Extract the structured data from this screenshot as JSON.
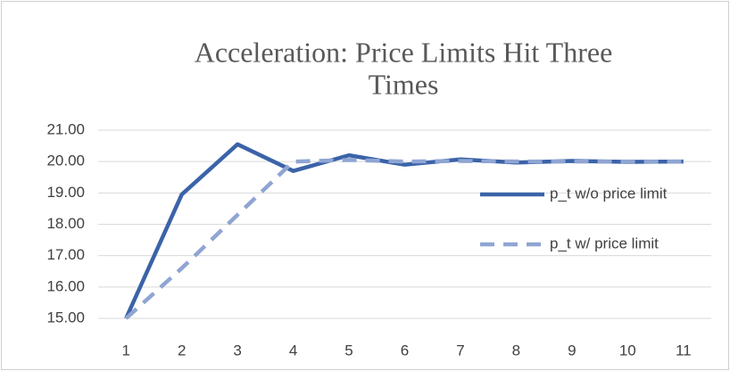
{
  "chart_data": {
    "type": "line",
    "title": "Acceleration: Price Limits Hit Three Times",
    "categories": [
      "1",
      "2",
      "3",
      "4",
      "5",
      "6",
      "7",
      "8",
      "9",
      "10",
      "11"
    ],
    "series": [
      {
        "name": "p_t w/o price limit",
        "color": "#3b63a8",
        "dash": false,
        "values": [
          15,
          18.95,
          20.55,
          19.7,
          20.2,
          19.9,
          20.07,
          19.97,
          20.02,
          19.99,
          20.0
        ]
      },
      {
        "name": "p_t w/ price limit",
        "color": "#8fa5d3",
        "dash": true,
        "values": [
          15,
          16.6,
          18.3,
          20.0,
          20.05,
          20.0,
          20.02,
          20.0,
          20.0,
          20.0,
          20.0
        ]
      }
    ],
    "ylim": [
      15,
      21
    ],
    "yticks": [
      {
        "value": 15,
        "label": "15.00"
      },
      {
        "value": 16,
        "label": "16.00"
      },
      {
        "value": 17,
        "label": "17.00"
      },
      {
        "value": 18,
        "label": "18.00"
      },
      {
        "value": 19,
        "label": "19.00"
      },
      {
        "value": 20,
        "label": "20.00"
      },
      {
        "value": 21,
        "label": "21.00"
      }
    ],
    "grid": true,
    "legend": "right"
  }
}
